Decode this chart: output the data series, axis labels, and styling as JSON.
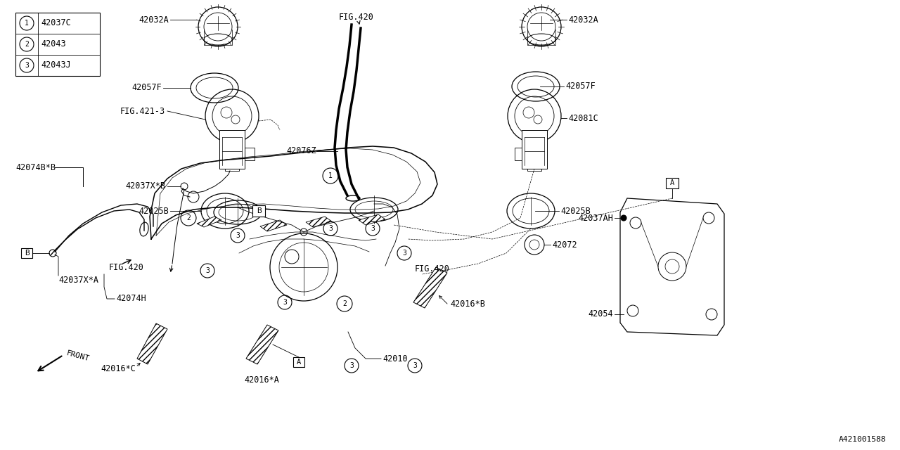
{
  "bg_color": "#ffffff",
  "line_color": "#000000",
  "legend": {
    "items": [
      {
        "num": "1",
        "code": "42037C"
      },
      {
        "num": "2",
        "code": "42043"
      },
      {
        "num": "3",
        "code": "42043J"
      }
    ]
  },
  "watermark": "A421001588"
}
